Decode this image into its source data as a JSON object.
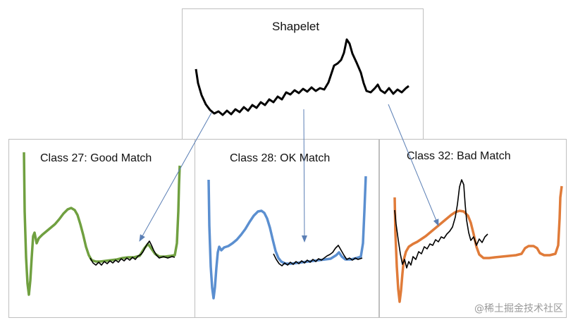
{
  "shapelet": {
    "title": "Shapelet"
  },
  "classes": [
    {
      "label": "Class 27: Good Match",
      "color": "#70a040"
    },
    {
      "label": "Class 28: OK Match",
      "color": "#5b8fd0"
    },
    {
      "label": "Class 32: Bad Match",
      "color": "#e07b39"
    }
  ],
  "shapelet_color": "#000000",
  "arrow_color": "#5b7fb5",
  "watermark": "@稀土掘金技术社区"
}
